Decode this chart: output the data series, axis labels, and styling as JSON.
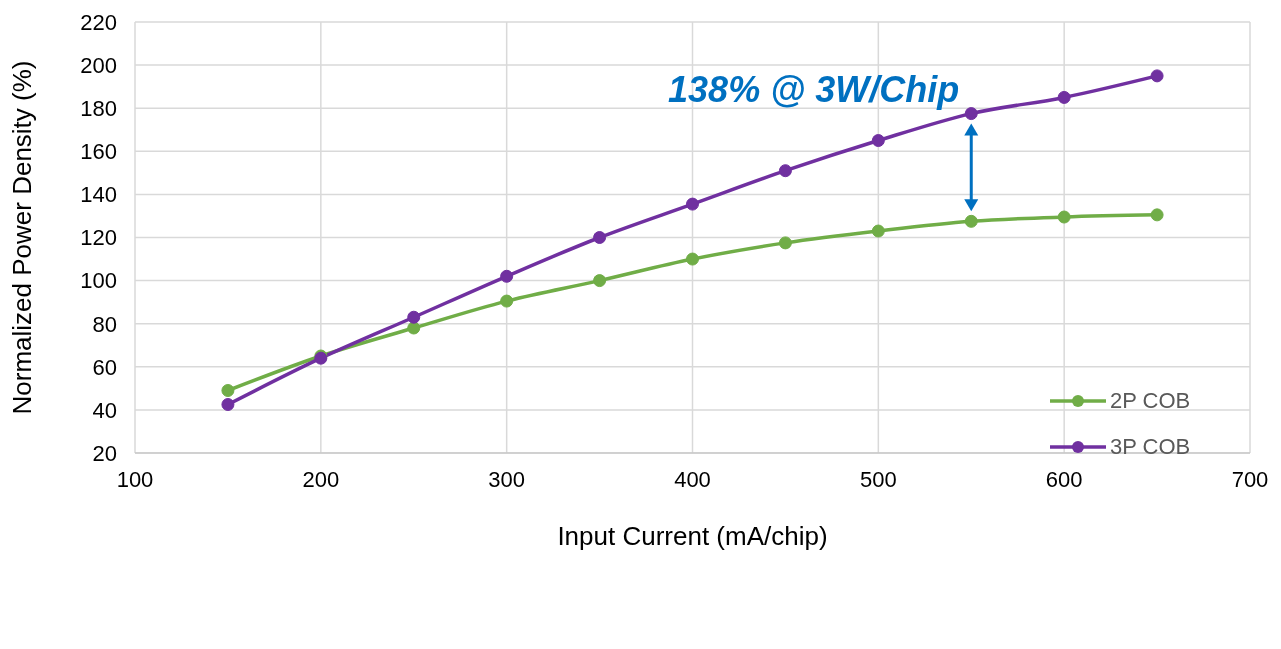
{
  "chart_data": {
    "type": "line",
    "xlabel": "Input Current (mA/chip)",
    "ylabel": "Normalized Power Density (%)",
    "x": [
      150,
      200,
      250,
      300,
      350,
      400,
      450,
      500,
      550,
      600,
      650
    ],
    "series": [
      {
        "name": "2P COB",
        "color": "#70ad47",
        "values": [
          49,
          65,
          78,
          90.5,
          100,
          110,
          117.5,
          123,
          127.5,
          129.5,
          130.5
        ]
      },
      {
        "name": "3P COB",
        "color": "#7030a0",
        "values": [
          42.5,
          64,
          83,
          102,
          120,
          135.5,
          151,
          165,
          177.5,
          185,
          195
        ]
      }
    ],
    "xlim": [
      100,
      700
    ],
    "xticks": [
      100,
      200,
      300,
      400,
      500,
      600,
      700
    ],
    "ylim": [
      20,
      220
    ],
    "yticks": [
      20,
      40,
      60,
      80,
      100,
      120,
      140,
      160,
      180,
      200,
      220
    ],
    "grid": true,
    "legend": "right",
    "marker": "circle",
    "line_style": "solid",
    "annotations": [
      {
        "text": "138% @ 3W/Chip",
        "x": 550,
        "y": 177.5
      }
    ]
  }
}
